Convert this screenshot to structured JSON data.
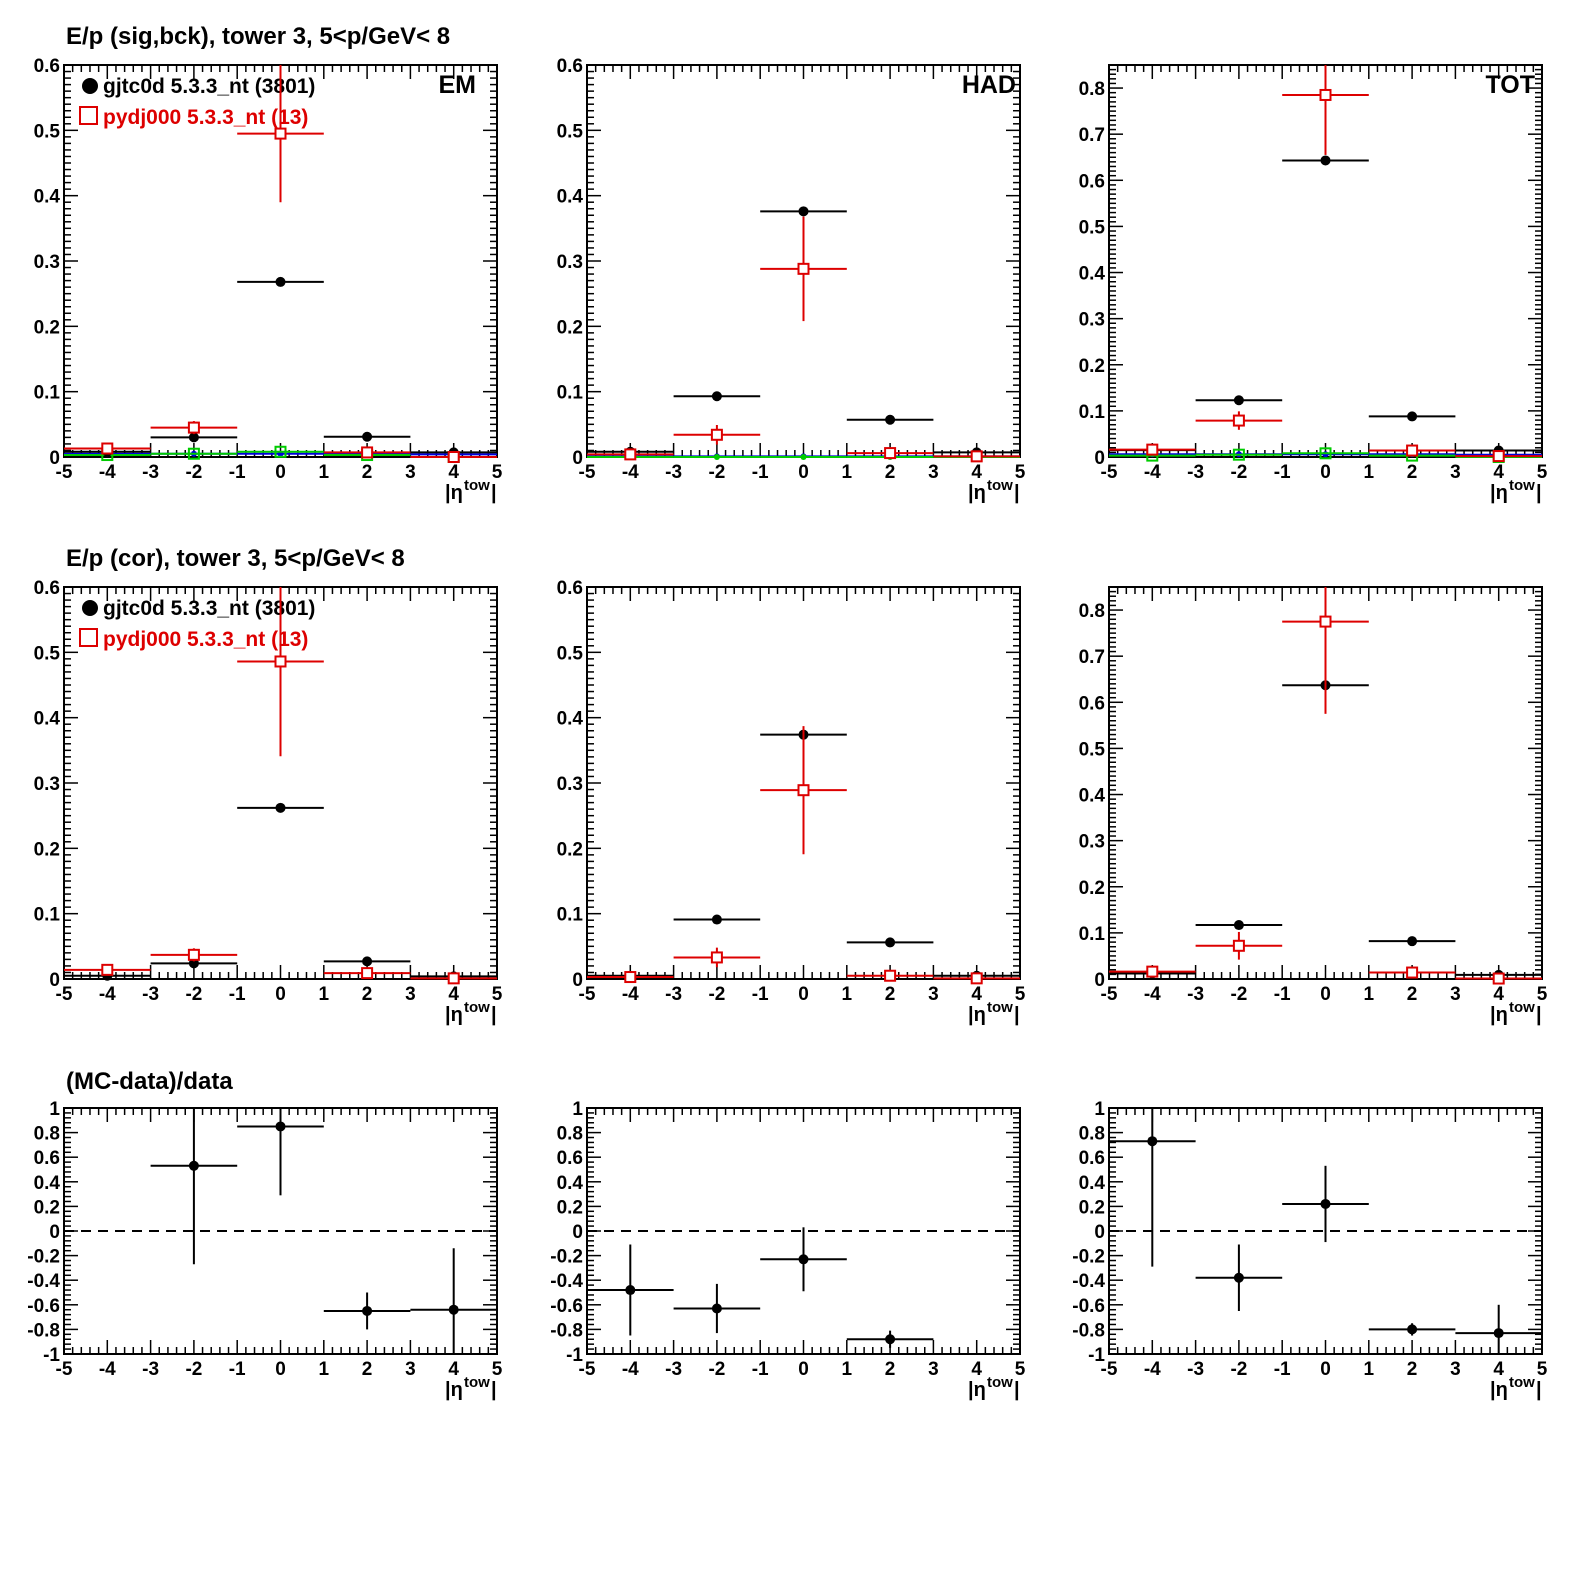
{
  "row_titles": [
    "E/p (sig,bck), tower 3,  5<p/GeV< 8",
    "E/p (cor), tower 3,  5<p/GeV< 8",
    "(MC-data)/data"
  ],
  "panel_labels": [
    "EM",
    "HAD",
    "TOT"
  ],
  "legend": [
    {
      "label": "gjtc0d 5.3.3_nt (3801)",
      "color": "#000000",
      "marker": "filled-circle"
    },
    {
      "label": "pydj000 5.3.3_nt (13)",
      "color": "#dd0000",
      "marker": "open-square"
    }
  ],
  "xaxis": {
    "label": "|η",
    "label_sup": "tow",
    "label_end": "|",
    "range": [
      -5,
      5
    ],
    "ticks": [
      "-5",
      "-4",
      "-3",
      "-2",
      "-1",
      "0",
      "1",
      "2",
      "3",
      "4",
      "5"
    ]
  },
  "colors": {
    "data": "#000000",
    "mc": "#dd0000",
    "blue": "#0000dd",
    "green": "#00cc00"
  },
  "chart_data": [
    {
      "type": "scatter",
      "panel": "EM sig,bck",
      "xlim": [
        -5,
        5
      ],
      "ylim": [
        0,
        0.6
      ],
      "yticks": [
        "0",
        "0.1",
        "0.2",
        "0.3",
        "0.4",
        "0.5",
        "0.6"
      ],
      "series": [
        {
          "name": "gjtc0d 5.3.3_nt (3801)",
          "color": "#000000",
          "marker": "dot",
          "points": [
            [
              -4,
              0.008,
              0
            ],
            [
              -2,
              0.03,
              0
            ],
            [
              0,
              0.268,
              0
            ],
            [
              2,
              0.031,
              0
            ],
            [
              4,
              0.007,
              0
            ]
          ]
        },
        {
          "name": "pydj000 5.3.3_nt (13)",
          "color": "#dd0000",
          "marker": "square",
          "points": [
            [
              -4,
              0.013,
              0.004
            ],
            [
              -2,
              0.045,
              0.01
            ],
            [
              0,
              0.495,
              0.105
            ],
            [
              2,
              0.007,
              0.003
            ],
            [
              4,
              0.0,
              0
            ]
          ]
        },
        {
          "color": "#0000dd",
          "marker": "small",
          "points": [
            [
              -4,
              0.005,
              0
            ],
            [
              -2,
              0.005,
              0
            ],
            [
              0,
              0.005,
              0
            ],
            [
              2,
              0.005,
              0
            ],
            [
              4,
              0.004,
              0
            ]
          ]
        },
        {
          "color": "#00cc00",
          "marker": "green-square",
          "points": [
            [
              -4,
              0.003,
              0
            ],
            [
              -2,
              0.005,
              0
            ],
            [
              0,
              0.008,
              0
            ],
            [
              2,
              0.003,
              0
            ],
            [
              4,
              0.0,
              0
            ]
          ]
        }
      ]
    },
    {
      "type": "scatter",
      "panel": "HAD sig,bck",
      "xlim": [
        -5,
        5
      ],
      "ylim": [
        0,
        0.6
      ],
      "yticks": [
        "0",
        "0.1",
        "0.2",
        "0.3",
        "0.4",
        "0.5",
        "0.6"
      ],
      "series": [
        {
          "name": "gjtc0d 5.3.3_nt (3801)",
          "color": "#000000",
          "marker": "dot",
          "points": [
            [
              -4,
              0.008,
              0
            ],
            [
              -2,
              0.093,
              0
            ],
            [
              0,
              0.376,
              0
            ],
            [
              2,
              0.057,
              0
            ],
            [
              4,
              0.007,
              0
            ]
          ]
        },
        {
          "name": "pydj000 5.3.3_nt (13)",
          "color": "#dd0000",
          "marker": "square",
          "points": [
            [
              -4,
              0.004,
              0.002
            ],
            [
              -2,
              0.034,
              0.015
            ],
            [
              0,
              0.288,
              0.08
            ],
            [
              2,
              0.006,
              0.003
            ],
            [
              4,
              0.001,
              0
            ]
          ]
        },
        {
          "color": "#0000dd",
          "marker": "small",
          "points": [
            [
              -4,
              0.001,
              0
            ],
            [
              -2,
              0.001,
              0
            ],
            [
              0,
              0.001,
              0
            ],
            [
              2,
              0.001,
              0
            ],
            [
              4,
              0.001,
              0
            ]
          ]
        },
        {
          "color": "#00cc00",
          "marker": "small",
          "points": [
            [
              -4,
              0.0,
              0
            ],
            [
              -2,
              0.0,
              0
            ],
            [
              0,
              0.0,
              0
            ],
            [
              2,
              0.0,
              0
            ],
            [
              4,
              0.0,
              0
            ]
          ]
        }
      ]
    },
    {
      "type": "scatter",
      "panel": "TOT sig,bck",
      "xlim": [
        -5,
        5
      ],
      "ylim": [
        0,
        0.85
      ],
      "yticks": [
        "0",
        "0.1",
        "0.2",
        "0.3",
        "0.4",
        "0.5",
        "0.6",
        "0.7",
        "0.8"
      ],
      "series": [
        {
          "name": "gjtc0d 5.3.3_nt (3801)",
          "color": "#000000",
          "marker": "dot",
          "points": [
            [
              -4,
              0.015,
              0
            ],
            [
              -2,
              0.123,
              0
            ],
            [
              0,
              0.643,
              0
            ],
            [
              2,
              0.088,
              0
            ],
            [
              4,
              0.014,
              0
            ]
          ]
        },
        {
          "name": "pydj000 5.3.3_nt (13)",
          "color": "#dd0000",
          "marker": "square",
          "points": [
            [
              -4,
              0.016,
              0.005
            ],
            [
              -2,
              0.079,
              0.02
            ],
            [
              0,
              0.785,
              0.13
            ],
            [
              2,
              0.014,
              0.004
            ],
            [
              4,
              0.002,
              0
            ]
          ]
        },
        {
          "color": "#0000dd",
          "marker": "small",
          "points": [
            [
              -4,
              0.006,
              0
            ],
            [
              -2,
              0.006,
              0
            ],
            [
              0,
              0.006,
              0
            ],
            [
              2,
              0.006,
              0
            ],
            [
              4,
              0.005,
              0
            ]
          ]
        },
        {
          "color": "#00cc00",
          "marker": "green-square",
          "points": [
            [
              -4,
              0.003,
              0
            ],
            [
              -2,
              0.005,
              0
            ],
            [
              0,
              0.008,
              0
            ],
            [
              2,
              0.003,
              0
            ],
            [
              4,
              0.0,
              0
            ]
          ]
        }
      ]
    },
    {
      "type": "scatter",
      "panel": "EM cor",
      "xlim": [
        -5,
        5
      ],
      "ylim": [
        0,
        0.6
      ],
      "yticks": [
        "0",
        "0.1",
        "0.2",
        "0.3",
        "0.4",
        "0.5",
        "0.6"
      ],
      "series": [
        {
          "name": "gjtc0d 5.3.3_nt (3801)",
          "color": "#000000",
          "marker": "dot",
          "points": [
            [
              -4,
              0.005,
              0
            ],
            [
              -2,
              0.024,
              0
            ],
            [
              0,
              0.262,
              0
            ],
            [
              2,
              0.027,
              0
            ],
            [
              4,
              0.004,
              0
            ]
          ]
        },
        {
          "name": "pydj000 5.3.3_nt (13)",
          "color": "#dd0000",
          "marker": "square",
          "points": [
            [
              -4,
              0.014,
              0.004
            ],
            [
              -2,
              0.037,
              0.01
            ],
            [
              0,
              0.486,
              0.145
            ],
            [
              2,
              0.009,
              0.003
            ],
            [
              4,
              0.001,
              0
            ]
          ]
        }
      ]
    },
    {
      "type": "scatter",
      "panel": "HAD cor",
      "xlim": [
        -5,
        5
      ],
      "ylim": [
        0,
        0.6
      ],
      "yticks": [
        "0",
        "0.1",
        "0.2",
        "0.3",
        "0.4",
        "0.5",
        "0.6"
      ],
      "series": [
        {
          "name": "gjtc0d 5.3.3_nt (3801)",
          "color": "#000000",
          "marker": "dot",
          "points": [
            [
              -4,
              0.005,
              0
            ],
            [
              -2,
              0.091,
              0
            ],
            [
              0,
              0.374,
              0
            ],
            [
              2,
              0.056,
              0
            ],
            [
              4,
              0.005,
              0
            ]
          ]
        },
        {
          "name": "pydj000 5.3.3_nt (13)",
          "color": "#dd0000",
          "marker": "square",
          "points": [
            [
              -4,
              0.003,
              0.002
            ],
            [
              -2,
              0.033,
              0.015
            ],
            [
              0,
              0.289,
              0.098
            ],
            [
              2,
              0.005,
              0.003
            ],
            [
              4,
              0.001,
              0
            ]
          ]
        }
      ]
    },
    {
      "type": "scatter",
      "panel": "TOT cor",
      "xlim": [
        -5,
        5
      ],
      "ylim": [
        0,
        0.85
      ],
      "yticks": [
        "0",
        "0.1",
        "0.2",
        "0.3",
        "0.4",
        "0.5",
        "0.6",
        "0.7",
        "0.8"
      ],
      "series": [
        {
          "name": "gjtc0d 5.3.3_nt (3801)",
          "color": "#000000",
          "marker": "dot",
          "points": [
            [
              -4,
              0.012,
              0
            ],
            [
              -2,
              0.117,
              0
            ],
            [
              0,
              0.637,
              0
            ],
            [
              2,
              0.082,
              0
            ],
            [
              4,
              0.009,
              0
            ]
          ]
        },
        {
          "name": "pydj000 5.3.3_nt (13)",
          "color": "#dd0000",
          "marker": "square",
          "points": [
            [
              -4,
              0.016,
              0.005
            ],
            [
              -2,
              0.072,
              0.03
            ],
            [
              0,
              0.775,
              0.2
            ],
            [
              2,
              0.014,
              0.004
            ],
            [
              4,
              0.001,
              0
            ]
          ]
        }
      ]
    },
    {
      "type": "scatter",
      "panel": "EM ratio",
      "xlim": [
        -5,
        5
      ],
      "ylim": [
        -1,
        1
      ],
      "yticks": [
        "-1",
        "-0.8",
        "-0.6",
        "-0.4",
        "-0.2",
        "0",
        "0.2",
        "0.4",
        "0.6",
        "0.8",
        "1"
      ],
      "reference_line": 0,
      "series": [
        {
          "color": "#000000",
          "marker": "dot",
          "points": [
            [
              -2,
              0.53,
              0.8
            ],
            [
              0,
              0.85,
              0.56
            ],
            [
              2,
              -0.65,
              0.15
            ],
            [
              4,
              -0.64,
              0.5
            ]
          ]
        }
      ]
    },
    {
      "type": "scatter",
      "panel": "HAD ratio",
      "xlim": [
        -5,
        5
      ],
      "ylim": [
        -1,
        1
      ],
      "yticks": [
        "-1",
        "-0.8",
        "-0.6",
        "-0.4",
        "-0.2",
        "0",
        "0.2",
        "0.4",
        "0.6",
        "0.8",
        "1"
      ],
      "reference_line": 0,
      "series": [
        {
          "color": "#000000",
          "marker": "dot",
          "points": [
            [
              -4,
              -0.48,
              0.37
            ],
            [
              -2,
              -0.63,
              0.2
            ],
            [
              0,
              -0.23,
              0.26
            ],
            [
              2,
              -0.88,
              0.07
            ]
          ]
        }
      ]
    },
    {
      "type": "scatter",
      "panel": "TOT ratio",
      "xlim": [
        -5,
        5
      ],
      "ylim": [
        -1,
        1
      ],
      "yticks": [
        "-1",
        "-0.8",
        "-0.6",
        "-0.4",
        "-0.2",
        "0",
        "0.2",
        "0.4",
        "0.6",
        "0.8",
        "1"
      ],
      "reference_line": 0,
      "series": [
        {
          "color": "#000000",
          "marker": "dot",
          "points": [
            [
              -4,
              0.73,
              1.02
            ],
            [
              -2,
              -0.38,
              0.27
            ],
            [
              0,
              0.22,
              0.31
            ],
            [
              2,
              -0.8,
              0.05
            ],
            [
              4,
              -0.83,
              0.23
            ]
          ]
        }
      ]
    }
  ]
}
